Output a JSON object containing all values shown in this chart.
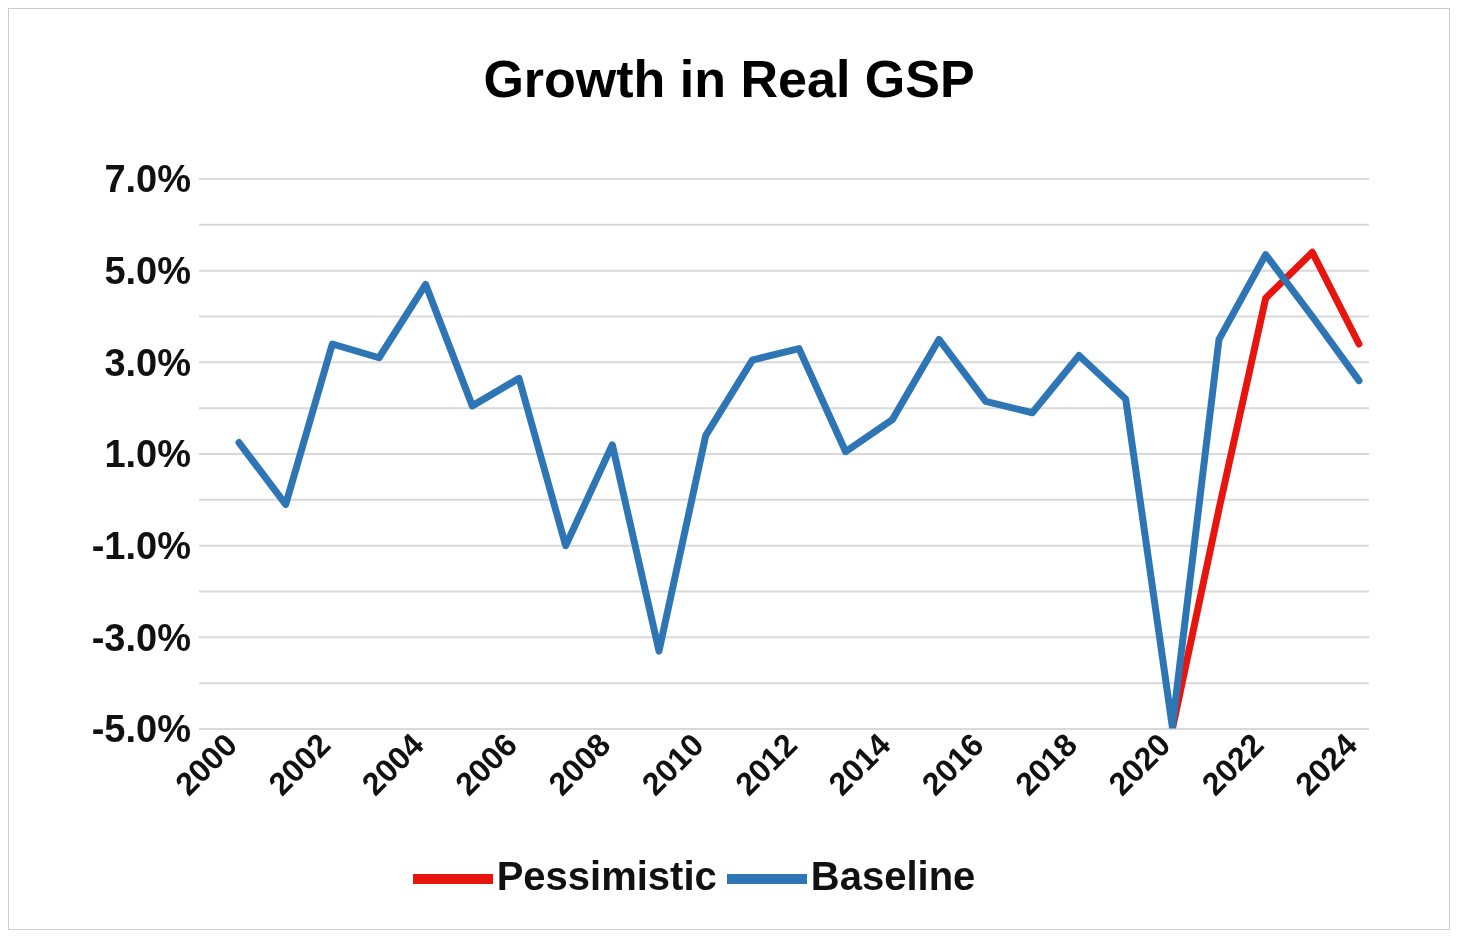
{
  "chart_data": {
    "type": "line",
    "title": "Growth in Real GSP",
    "categories": [
      "2000",
      null,
      "2002",
      null,
      "2004",
      null,
      "2006",
      null,
      "2008",
      null,
      "2010",
      null,
      "2012",
      null,
      "2014",
      null,
      "2016",
      null,
      "2018",
      null,
      "2020",
      null,
      "2022",
      null,
      "2024"
    ],
    "series": [
      {
        "name": "Pessimistic",
        "color": "#e8150e",
        "values": [
          null,
          null,
          null,
          null,
          null,
          null,
          null,
          null,
          null,
          null,
          null,
          null,
          null,
          null,
          null,
          null,
          null,
          null,
          null,
          null,
          -5.0,
          -0.2,
          4.4,
          5.4,
          3.4
        ]
      },
      {
        "name": "Baseline",
        "color": "#2e75b6",
        "values": [
          1.25,
          -0.1,
          3.4,
          3.1,
          4.7,
          2.05,
          2.65,
          -1.0,
          1.2,
          -3.3,
          1.4,
          3.05,
          3.3,
          1.05,
          1.75,
          3.5,
          2.15,
          1.9,
          3.15,
          2.2,
          -4.95,
          3.5,
          5.35,
          4.0,
          2.6
        ]
      }
    ],
    "ylim": [
      -5,
      7
    ],
    "yticks": [
      {
        "value": -5,
        "label": "-5.0%"
      },
      {
        "value": -4,
        "label": null
      },
      {
        "value": -3,
        "label": "-3.0%"
      },
      {
        "value": -2,
        "label": null
      },
      {
        "value": -1,
        "label": "-1.0%"
      },
      {
        "value": 0,
        "label": null
      },
      {
        "value": 1,
        "label": "1.0%"
      },
      {
        "value": 2,
        "label": null
      },
      {
        "value": 3,
        "label": "3.0%"
      },
      {
        "value": 4,
        "label": null
      },
      {
        "value": 5,
        "label": "5.0%"
      },
      {
        "value": 6,
        "label": null
      },
      {
        "value": 7,
        "label": "7.0%"
      }
    ],
    "grid": "y",
    "legend": "bottom",
    "marker": "none",
    "line_style": "solid"
  }
}
